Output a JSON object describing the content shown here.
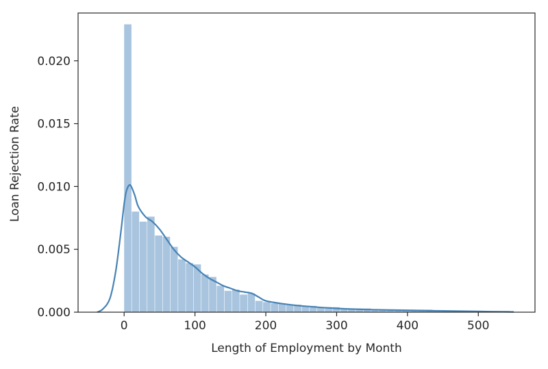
{
  "chart_data": {
    "type": "bar",
    "xlabel": "Length of Employment by Month",
    "ylabel": "Loan Rejection Rate",
    "xlim": [
      -65,
      580
    ],
    "ylim": [
      0,
      0.0238
    ],
    "xticks": [
      {
        "value": 0,
        "label": "0"
      },
      {
        "value": 100,
        "label": "100"
      },
      {
        "value": 200,
        "label": "200"
      },
      {
        "value": 300,
        "label": "300"
      },
      {
        "value": 400,
        "label": "400"
      },
      {
        "value": 500,
        "label": "500"
      }
    ],
    "yticks": [
      {
        "value": 0,
        "label": "0.000"
      },
      {
        "value": 0.005,
        "label": "0.005"
      },
      {
        "value": 0.01,
        "label": "0.010"
      },
      {
        "value": 0.015,
        "label": "0.015"
      },
      {
        "value": 0.02,
        "label": "0.020"
      }
    ],
    "grid": false,
    "colors": {
      "bars": "#a8c4de",
      "kde": "#4682b4",
      "axes": "#262626"
    },
    "histogram": {
      "bin_edges": [
        0,
        10.9,
        21.8,
        32.7,
        43.6,
        54.5,
        65.4,
        76.3,
        87.2,
        98.1,
        109.0,
        119.9,
        130.8,
        141.7,
        152.6,
        163.5,
        174.4,
        185.3,
        196.2,
        207.1,
        218.0,
        228.9,
        239.8,
        250.7,
        261.6,
        272.5,
        283.4,
        294.3,
        305.2,
        316.1,
        327.0,
        337.9,
        348.8,
        359.7,
        370.6,
        381.5,
        392.4,
        403.3,
        414.2,
        425.1,
        436.0,
        446.9,
        457.8,
        468.7,
        479.6,
        490.5,
        501.4,
        512.3,
        523.2,
        534.1,
        545.0
      ],
      "values": [
        0.0229,
        0.008,
        0.0072,
        0.0076,
        0.0061,
        0.006,
        0.0052,
        0.0042,
        0.0039,
        0.0038,
        0.003,
        0.0028,
        0.0021,
        0.0017,
        0.0018,
        0.0014,
        0.0015,
        0.0009,
        0.0008,
        0.0007,
        0.0007,
        0.0006,
        0.0006,
        0.0005,
        0.0005,
        0.0004,
        0.0004,
        0.0004,
        0.0003,
        0.0003,
        0.0003,
        0.0003,
        0.0002,
        0.0002,
        0.0002,
        0.0002,
        0.0002,
        0.0002,
        0.0002,
        0.0002,
        0.0001,
        0.0001,
        0.0001,
        0.0001,
        0.0001,
        0.0001,
        0.0001,
        0.0001,
        0.0001,
        0.0001
      ]
    },
    "kde": {
      "x": [
        -38,
        -30,
        -20,
        -12,
        -5,
        0,
        3,
        7,
        10,
        15,
        20,
        30,
        40,
        50,
        60,
        70,
        80,
        90,
        100,
        110,
        120,
        130,
        140,
        150,
        160,
        170,
        180,
        190,
        200,
        220,
        250,
        300,
        350,
        400,
        450,
        500,
        550
      ],
      "y": [
        0.0,
        0.00025,
        0.0011,
        0.0032,
        0.0062,
        0.0086,
        0.0096,
        0.0101,
        0.01,
        0.0093,
        0.0084,
        0.0076,
        0.0072,
        0.0066,
        0.0058,
        0.005,
        0.0044,
        0.004,
        0.0036,
        0.0031,
        0.0027,
        0.0024,
        0.0021,
        0.0019,
        0.0017,
        0.0016,
        0.0015,
        0.0012,
        0.0009,
        0.0007,
        0.0005,
        0.0003,
        0.0002,
        0.00015,
        0.0001,
        6e-05,
        2e-05
      ]
    }
  }
}
